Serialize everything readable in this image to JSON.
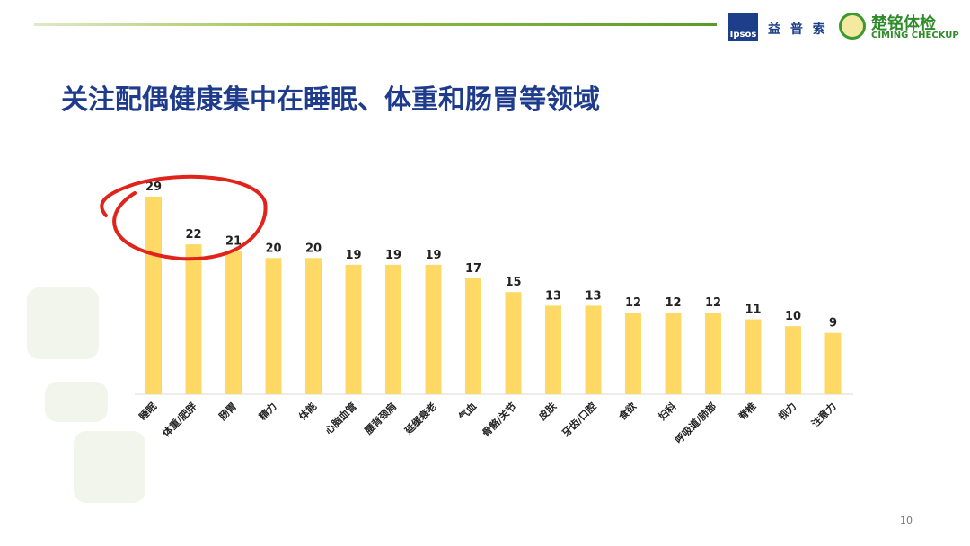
{
  "header": {
    "ipsos_logo": "Ipsos",
    "ipsos_cn": "益 普 索",
    "ciming_cn": "楚铭体检",
    "ciming_en": "CIMING CHECKUP"
  },
  "title": "关注配偶健康集中在睡眠、体重和肠胃等领域",
  "page_number": "10",
  "chart_data": {
    "type": "bar",
    "categories": [
      "睡眠",
      "体重/肥胖",
      "肠胃",
      "精力",
      "体能",
      "心脑血管",
      "腰背颈肩",
      "延缓衰老",
      "气血",
      "骨骼/关节",
      "皮肤",
      "牙齿/口腔",
      "食欲",
      "妇科",
      "呼吸道/肺部",
      "脊椎",
      "视力",
      "注意力"
    ],
    "values": [
      29,
      22,
      21,
      20,
      20,
      19,
      19,
      19,
      17,
      15,
      13,
      13,
      12,
      12,
      12,
      11,
      10,
      9
    ],
    "ylim": [
      0,
      30
    ],
    "grid": false,
    "bar_color": "#FFD966",
    "annotation_color": "#E0241B",
    "highlighted_categories": [
      "睡眠",
      "体重/肥胖",
      "肠胃"
    ]
  }
}
